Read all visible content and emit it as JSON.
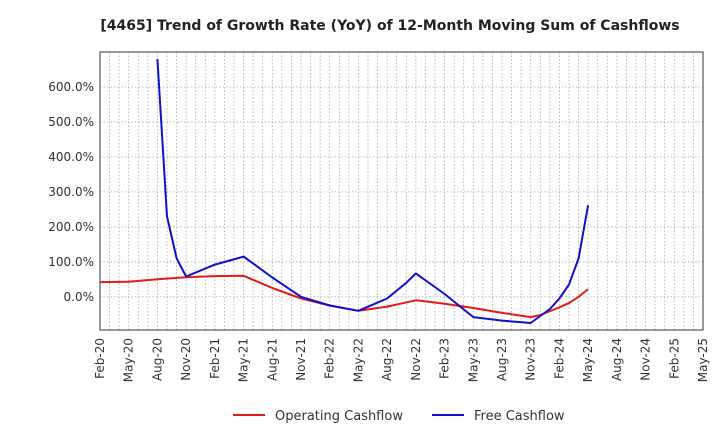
{
  "chart_data": {
    "type": "line",
    "title": "[4465]  Trend of Growth Rate (YoY) of 12-Month Moving Sum of Cashflows",
    "xlabel": "",
    "ylabel": "",
    "ylim": [
      -95,
      700
    ],
    "yticks": [
      0,
      100,
      200,
      300,
      400,
      500,
      600
    ],
    "ytick_labels": [
      "0.0%",
      "100.0%",
      "200.0%",
      "300.0%",
      "400.0%",
      "500.0%",
      "600.0%"
    ],
    "x_tick_labels": [
      "Feb-20",
      "May-20",
      "Aug-20",
      "Nov-20",
      "Feb-21",
      "May-21",
      "Aug-21",
      "Nov-21",
      "Feb-22",
      "May-22",
      "Aug-22",
      "Nov-22",
      "Feb-23",
      "May-23",
      "Aug-23",
      "Nov-23",
      "Feb-24",
      "May-24",
      "Aug-24",
      "Nov-24",
      "Feb-25",
      "May-25"
    ],
    "x_start": "Feb-20",
    "x_end": "May-25",
    "grid": true,
    "legend_position": "bottom",
    "series": [
      {
        "name": "Operating Cashflow",
        "color": "#e31a1c",
        "points": [
          [
            "Feb-20",
            42
          ],
          [
            "May-20",
            43
          ],
          [
            "Aug-20",
            50
          ],
          [
            "Nov-20",
            56
          ],
          [
            "Feb-21",
            59
          ],
          [
            "May-21",
            60
          ],
          [
            "Aug-21",
            25
          ],
          [
            "Nov-21",
            -5
          ],
          [
            "Feb-22",
            -25
          ],
          [
            "May-22",
            -40
          ],
          [
            "Aug-22",
            -28
          ],
          [
            "Nov-22",
            -10
          ],
          [
            "Feb-23",
            -20
          ],
          [
            "May-23",
            -32
          ],
          [
            "Aug-23",
            -46
          ],
          [
            "Nov-23",
            -58
          ],
          [
            "Dec-23",
            -52
          ],
          [
            "Feb-24",
            -30
          ],
          [
            "Mar-24",
            -18
          ],
          [
            "Apr-24",
            0
          ],
          [
            "May-24",
            22
          ]
        ]
      },
      {
        "name": "Free Cashflow",
        "color": "#1010cc",
        "points": [
          [
            "Aug-20",
            680
          ],
          [
            "Sep-20",
            230
          ],
          [
            "Oct-20",
            110
          ],
          [
            "Nov-20",
            58
          ],
          [
            "Feb-21",
            92
          ],
          [
            "May-21",
            115
          ],
          [
            "Aug-21",
            55
          ],
          [
            "Nov-21",
            0
          ],
          [
            "Feb-22",
            -25
          ],
          [
            "May-22",
            -40
          ],
          [
            "Aug-22",
            -5
          ],
          [
            "Oct-22",
            40
          ],
          [
            "Nov-22",
            67
          ],
          [
            "Feb-23",
            8
          ],
          [
            "May-23",
            -58
          ],
          [
            "Aug-23",
            -68
          ],
          [
            "Nov-23",
            -75
          ],
          [
            "Dec-23",
            -55
          ],
          [
            "Jan-24",
            -35
          ],
          [
            "Feb-24",
            -5
          ],
          [
            "Mar-24",
            35
          ],
          [
            "Apr-24",
            110
          ],
          [
            "May-24",
            262
          ]
        ]
      }
    ]
  }
}
